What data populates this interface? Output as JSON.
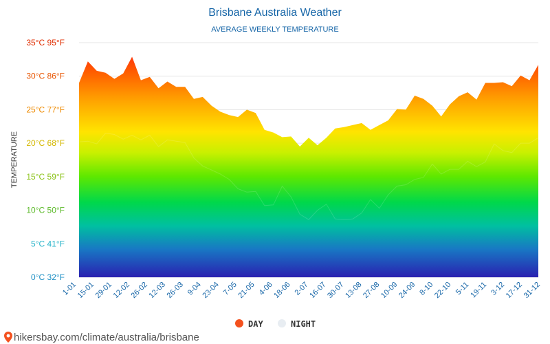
{
  "chart_data": {
    "type": "area",
    "title": "Brisbane Australia Weather",
    "subtitle": "AVERAGE WEEKLY TEMPERATURE",
    "ylabel": "TEMPERATURE",
    "ylim": [
      0,
      35
    ],
    "y_ticks": [
      {
        "value": 0,
        "label": "0°C 32°F",
        "color": "#1d8fc4"
      },
      {
        "value": 5,
        "label": "5°C 41°F",
        "color": "#26b3c9"
      },
      {
        "value": 10,
        "label": "10°C 50°F",
        "color": "#5cba2a"
      },
      {
        "value": 15,
        "label": "15°C 59°F",
        "color": "#8cc31a"
      },
      {
        "value": 20,
        "label": "20°C 68°F",
        "color": "#d4b800"
      },
      {
        "value": 25,
        "label": "25°C 77°F",
        "color": "#ee8a00"
      },
      {
        "value": 30,
        "label": "30°C 86°F",
        "color": "#e85400"
      },
      {
        "value": 35,
        "label": "35°C 95°F",
        "color": "#e02d00"
      }
    ],
    "x_labels": [
      "1-01",
      "15-01",
      "29-01",
      "12-02",
      "26-02",
      "12-03",
      "26-03",
      "9-04",
      "23-04",
      "7-05",
      "21-05",
      "4-06",
      "18-06",
      "2-07",
      "16-07",
      "30-07",
      "13-08",
      "27-08",
      "10-09",
      "24-09",
      "8-10",
      "22-10",
      "5-11",
      "19-11",
      "3-12",
      "17-12",
      "31-12"
    ],
    "series": [
      {
        "name": "DAY",
        "color": "#f4511e",
        "values": [
          29,
          32.2,
          30.8,
          30.5,
          29.6,
          30.4,
          32.9,
          29.4,
          29.9,
          28.2,
          29.2,
          28.4,
          28.4,
          26.6,
          26.9,
          25.6,
          24.7,
          24.2,
          23.9,
          25,
          24.5,
          22,
          21.6,
          20.9,
          21,
          19.5,
          20.8,
          19.7,
          20.8,
          22.2,
          22.4,
          22.7,
          23,
          22,
          22.7,
          23.4,
          25.1,
          25,
          27.1,
          26.6,
          25.6,
          24,
          25.8,
          27,
          27.6,
          26.5,
          29,
          29,
          29.1,
          28.5,
          30.1,
          29.4,
          31.7
        ]
      },
      {
        "name": "NIGHT",
        "color": "#e8edf2",
        "values": [
          20.2,
          20.3,
          19.9,
          21.5,
          21.3,
          20.6,
          21.2,
          20.5,
          21.2,
          19.5,
          20.5,
          20.3,
          20.1,
          17.8,
          16.6,
          16,
          15.4,
          14.6,
          13.2,
          12.7,
          12.8,
          10.7,
          10.8,
          13.6,
          12,
          9.4,
          8.6,
          10,
          10.9,
          8.7,
          8.6,
          8.7,
          9.6,
          11.6,
          10.3,
          12.3,
          13.6,
          13.8,
          14.6,
          14.9,
          16.9,
          15.4,
          16.1,
          16.1,
          17.3,
          16.5,
          17.2,
          19.9,
          18.9,
          18.6,
          20,
          20,
          20.8
        ]
      }
    ],
    "legend": {
      "position": "bottom-center",
      "items": [
        {
          "label": "DAY",
          "color": "#f4511e"
        },
        {
          "label": "NIGHT",
          "color": "#e8edf2"
        }
      ]
    },
    "grid": true
  },
  "footer": {
    "text": "hikersbay.com/climate/australia/brisbane",
    "icon": "map-pin-icon",
    "icon_color": "#f4511e"
  }
}
